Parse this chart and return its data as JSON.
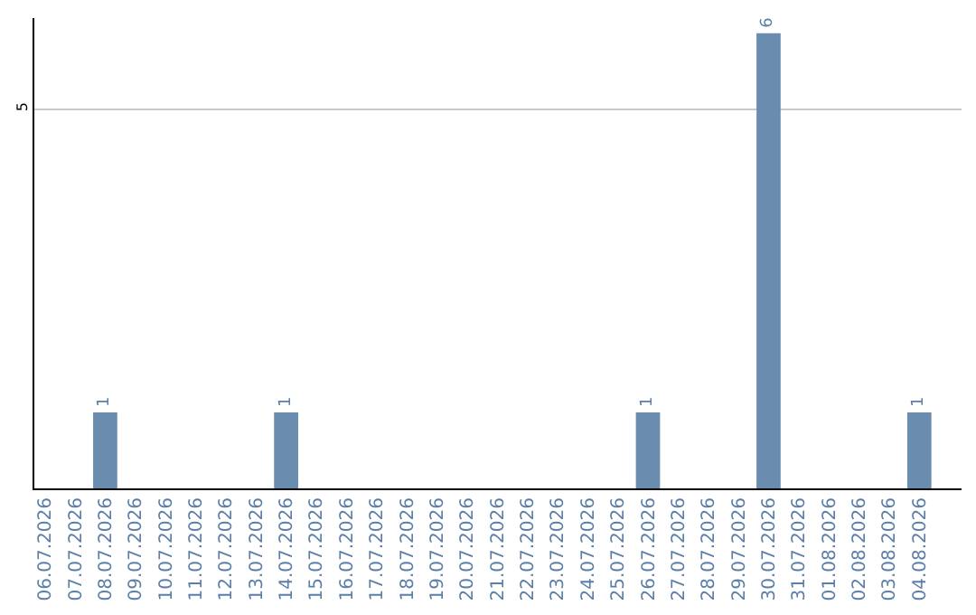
{
  "chart_data": {
    "type": "bar",
    "categories": [
      "06.07.2026",
      "07.07.2026",
      "08.07.2026",
      "09.07.2026",
      "10.07.2026",
      "11.07.2026",
      "12.07.2026",
      "13.07.2026",
      "14.07.2026",
      "15.07.2026",
      "16.07.2026",
      "17.07.2026",
      "18.07.2026",
      "19.07.2026",
      "20.07.2026",
      "21.07.2026",
      "22.07.2026",
      "23.07.2026",
      "24.07.2026",
      "25.07.2026",
      "26.07.2026",
      "27.07.2026",
      "28.07.2026",
      "29.07.2026",
      "30.07.2026",
      "31.07.2026",
      "01.08.2026",
      "02.08.2026",
      "03.08.2026",
      "04.08.2026"
    ],
    "values": [
      0,
      0,
      1,
      0,
      0,
      0,
      0,
      0,
      1,
      0,
      0,
      0,
      0,
      0,
      0,
      0,
      0,
      0,
      0,
      0,
      1,
      0,
      0,
      0,
      6,
      0,
      0,
      0,
      0,
      1
    ],
    "value_labels": [
      null,
      null,
      "1",
      null,
      null,
      null,
      null,
      null,
      "1",
      null,
      null,
      null,
      null,
      null,
      null,
      null,
      null,
      null,
      null,
      null,
      "1",
      null,
      null,
      null,
      "6",
      null,
      null,
      null,
      null,
      "1"
    ],
    "color": "#6a8caf",
    "ylim": [
      0,
      6.2
    ],
    "yticks": [
      5
    ],
    "grid": "y",
    "legend": false
  }
}
